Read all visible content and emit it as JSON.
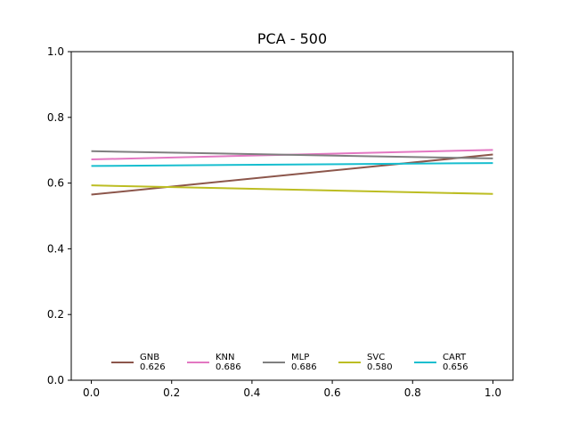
{
  "chart_data": {
    "type": "line",
    "title": "PCA - 500",
    "xlabel": "",
    "ylabel": "",
    "xlim": [
      -0.05,
      1.05
    ],
    "ylim": [
      0.0,
      1.0
    ],
    "xticks": [
      0.0,
      0.2,
      0.4,
      0.6,
      0.8,
      1.0
    ],
    "xtick_labels": [
      "0.0",
      "0.2",
      "0.4",
      "0.6",
      "0.8",
      "1.0"
    ],
    "yticks": [
      0.0,
      0.2,
      0.4,
      0.6,
      0.8,
      1.0
    ],
    "ytick_labels": [
      "0.0",
      "0.2",
      "0.4",
      "0.6",
      "0.8",
      "1.0"
    ],
    "grid": false,
    "legend_position": "lower-center",
    "x": [
      0.0,
      1.0
    ],
    "series": [
      {
        "name": "GNB",
        "legend_value": "0.626",
        "values": [
          0.565,
          0.687
        ],
        "color": "#8c564b"
      },
      {
        "name": "KNN",
        "legend_value": "0.686",
        "values": [
          0.672,
          0.701
        ],
        "color": "#e377c2"
      },
      {
        "name": "MLP",
        "legend_value": "0.686",
        "values": [
          0.697,
          0.675
        ],
        "color": "#7f7f7f"
      },
      {
        "name": "SVC",
        "legend_value": "0.580",
        "values": [
          0.593,
          0.567
        ],
        "color": "#bcbd22"
      },
      {
        "name": "CART",
        "legend_value": "0.656",
        "values": [
          0.652,
          0.661
        ],
        "color": "#17becf"
      }
    ]
  }
}
